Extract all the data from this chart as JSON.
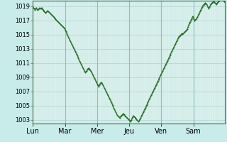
{
  "background_color": "#c8ece9",
  "plot_bg_color": "#daf0ed",
  "grid_color_major": "#aad4d0",
  "grid_color_minor": "#c0e4e0",
  "line_color": "#2a6e2a",
  "marker_color": "#2a6e2a",
  "ylim": [
    1002.5,
    1019.8
  ],
  "yticks": [
    1003,
    1005,
    1007,
    1009,
    1011,
    1013,
    1015,
    1017,
    1019
  ],
  "day_labels": [
    "Lun",
    "Mar",
    "Mer",
    "Jeu",
    "Ven",
    "Sam"
  ],
  "day_positions": [
    0,
    48,
    96,
    144,
    192,
    240
  ],
  "total_points": 288,
  "ylabel_fontsize": 6.0,
  "xlabel_fontsize": 7.0,
  "pressure_data": [
    1019.0,
    1018.8,
    1018.7,
    1018.5,
    1018.7,
    1018.8,
    1018.6,
    1018.5,
    1018.6,
    1018.7,
    1018.8,
    1018.7,
    1018.7,
    1018.8,
    1018.6,
    1018.5,
    1018.4,
    1018.3,
    1018.2,
    1018.1,
    1018.2,
    1018.3,
    1018.4,
    1018.3,
    1018.2,
    1018.1,
    1018.0,
    1017.9,
    1017.8,
    1017.7,
    1017.6,
    1017.5,
    1017.4,
    1017.3,
    1017.2,
    1017.1,
    1017.0,
    1016.9,
    1016.8,
    1016.7,
    1016.6,
    1016.5,
    1016.4,
    1016.3,
    1016.2,
    1016.1,
    1016.0,
    1015.9,
    1015.7,
    1015.5,
    1015.3,
    1015.1,
    1014.9,
    1014.7,
    1014.5,
    1014.3,
    1014.1,
    1013.9,
    1013.7,
    1013.5,
    1013.3,
    1013.1,
    1012.9,
    1012.7,
    1012.5,
    1012.3,
    1012.1,
    1011.9,
    1011.7,
    1011.5,
    1011.3,
    1011.1,
    1010.9,
    1010.7,
    1010.5,
    1010.3,
    1010.1,
    1009.9,
    1009.7,
    1009.8,
    1009.9,
    1010.1,
    1010.2,
    1010.3,
    1010.2,
    1010.1,
    1010.0,
    1009.9,
    1009.7,
    1009.5,
    1009.3,
    1009.1,
    1008.9,
    1008.7,
    1008.5,
    1008.3,
    1008.1,
    1007.9,
    1007.7,
    1007.9,
    1008.1,
    1008.2,
    1008.3,
    1008.2,
    1008.1,
    1007.9,
    1007.7,
    1007.5,
    1007.3,
    1007.1,
    1006.9,
    1006.7,
    1006.5,
    1006.3,
    1006.1,
    1005.9,
    1005.7,
    1005.5,
    1005.3,
    1005.1,
    1004.9,
    1004.7,
    1004.5,
    1004.3,
    1004.1,
    1003.9,
    1003.7,
    1003.6,
    1003.5,
    1003.4,
    1003.3,
    1003.5,
    1003.6,
    1003.7,
    1003.8,
    1003.9,
    1003.8,
    1003.7,
    1003.6,
    1003.5,
    1003.4,
    1003.3,
    1003.2,
    1003.1,
    1003.0,
    1002.9,
    1002.8,
    1003.0,
    1003.2,
    1003.4,
    1003.6,
    1003.5,
    1003.4,
    1003.3,
    1003.2,
    1003.1,
    1003.0,
    1002.9,
    1002.8,
    1002.9,
    1003.1,
    1003.3,
    1003.5,
    1003.7,
    1003.9,
    1004.1,
    1004.3,
    1004.5,
    1004.7,
    1004.9,
    1005.1,
    1005.3,
    1005.5,
    1005.7,
    1005.9,
    1006.1,
    1006.3,
    1006.5,
    1006.7,
    1006.9,
    1007.1,
    1007.3,
    1007.5,
    1007.7,
    1007.9,
    1008.1,
    1008.3,
    1008.5,
    1008.7,
    1008.9,
    1009.1,
    1009.3,
    1009.5,
    1009.7,
    1009.9,
    1010.1,
    1010.3,
    1010.5,
    1010.7,
    1010.9,
    1011.1,
    1011.3,
    1011.5,
    1011.7,
    1011.9,
    1012.1,
    1012.3,
    1012.5,
    1012.7,
    1012.9,
    1013.1,
    1013.3,
    1013.5,
    1013.7,
    1013.9,
    1014.1,
    1014.3,
    1014.5,
    1014.7,
    1014.8,
    1014.9,
    1015.0,
    1015.1,
    1015.2,
    1015.1,
    1015.2,
    1015.3,
    1015.4,
    1015.5,
    1015.6,
    1015.7,
    1015.8,
    1016.1,
    1016.4,
    1016.6,
    1016.8,
    1017.0,
    1017.2,
    1017.4,
    1017.6,
    1017.4,
    1017.2,
    1017.0,
    1017.1,
    1017.2,
    1017.3,
    1017.5,
    1017.7,
    1017.9,
    1018.1,
    1018.3,
    1018.5,
    1018.7,
    1018.9,
    1019.1,
    1019.2,
    1019.3,
    1019.4,
    1019.5,
    1019.4,
    1019.3,
    1019.1,
    1018.9,
    1018.7,
    1018.9,
    1019.1,
    1019.3,
    1019.4,
    1019.5,
    1019.6,
    1019.7,
    1019.6,
    1019.5,
    1019.4,
    1019.3,
    1019.4,
    1019.5,
    1019.6,
    1019.7,
    1019.8,
    1019.9,
    1020.0,
    1020.1,
    1020.0,
    1019.9,
    1019.8,
    1019.7,
    1019.6
  ]
}
